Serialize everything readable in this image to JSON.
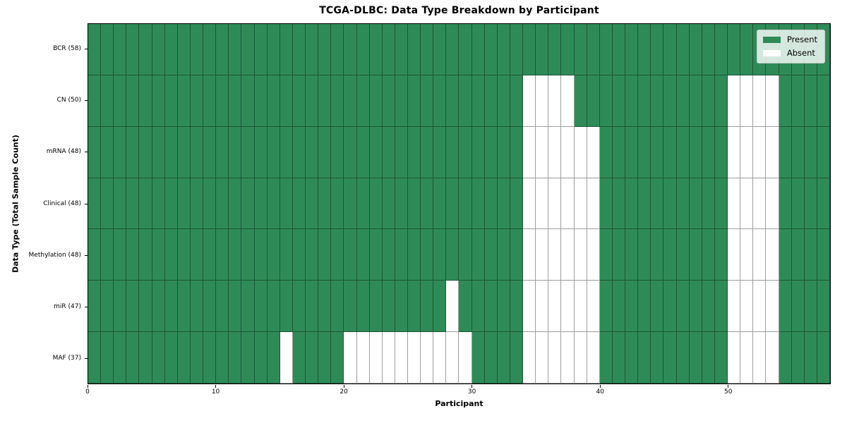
{
  "chart_data": {
    "type": "heatmap",
    "title": "TCGA-DLBC: Data Type Breakdown by Participant",
    "xlabel": "Participant",
    "ylabel": "Data Type (Total Sample Count)",
    "n_participants": 58,
    "x_range": [
      0,
      58
    ],
    "x_ticks": [
      0,
      10,
      20,
      30,
      40,
      50
    ],
    "grid": true,
    "legend_position": "upper right",
    "legend": [
      {
        "label": "Present",
        "color": "#2e8b57"
      },
      {
        "label": "Absent",
        "color": "#ffffff"
      }
    ],
    "categories": [
      "BCR (58)",
      "CN (50)",
      "mRNA (48)",
      "Clinical (48)",
      "Methylation (48)",
      "miR (47)",
      "MAF (37)"
    ],
    "rows": [
      {
        "label": "BCR (58)",
        "data_type": "BCR",
        "total_samples": 58,
        "absent_participants": []
      },
      {
        "label": "CN (50)",
        "data_type": "CN",
        "total_samples": 50,
        "absent_participants": [
          34,
          35,
          36,
          37,
          50,
          51,
          52,
          53
        ]
      },
      {
        "label": "mRNA (48)",
        "data_type": "mRNA",
        "total_samples": 48,
        "absent_participants": [
          34,
          35,
          36,
          37,
          38,
          39,
          50,
          51,
          52,
          53
        ]
      },
      {
        "label": "Clinical (48)",
        "data_type": "Clinical",
        "total_samples": 48,
        "absent_participants": [
          34,
          35,
          36,
          37,
          38,
          39,
          50,
          51,
          52,
          53
        ]
      },
      {
        "label": "Methylation (48)",
        "data_type": "Methylation",
        "total_samples": 48,
        "absent_participants": [
          34,
          35,
          36,
          37,
          38,
          39,
          50,
          51,
          52,
          53
        ]
      },
      {
        "label": "miR (47)",
        "data_type": "miR",
        "total_samples": 47,
        "absent_participants": [
          28,
          34,
          35,
          36,
          37,
          38,
          39,
          50,
          51,
          52,
          53
        ]
      },
      {
        "label": "MAF (37)",
        "data_type": "MAF",
        "total_samples": 37,
        "absent_participants": [
          15,
          20,
          21,
          22,
          23,
          24,
          25,
          26,
          27,
          28,
          29,
          34,
          35,
          36,
          37,
          38,
          39,
          50,
          51,
          52,
          53
        ]
      }
    ],
    "colors": {
      "present": "#2e8b57",
      "absent": "#ffffff",
      "gridline": "rgba(0,0,0,0.38)",
      "plot_border": "#000000"
    }
  }
}
